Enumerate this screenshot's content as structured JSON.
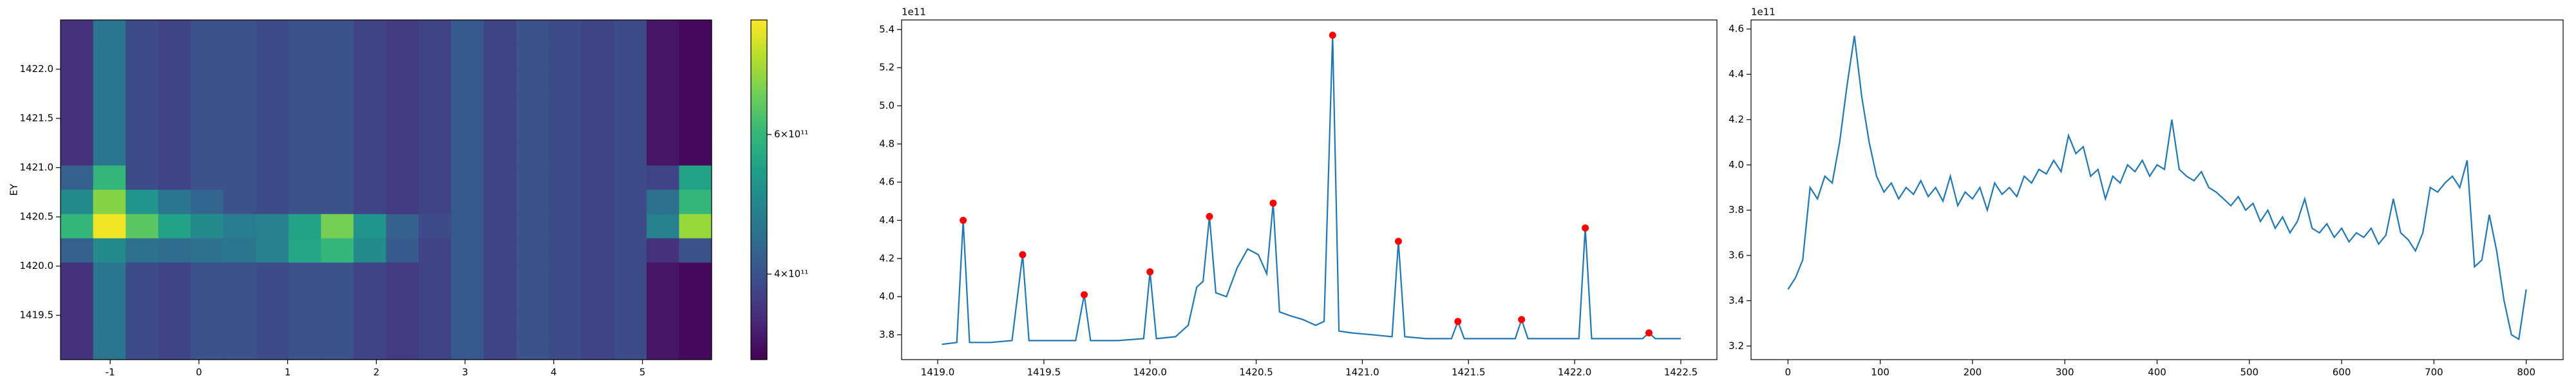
{
  "chart_data": [
    {
      "type": "heatmap",
      "ylabel": "EY",
      "colormap": "viridis",
      "color_scale": "log",
      "xlim": [
        -1.56,
        5.78
      ],
      "ylim": [
        1419.05,
        1422.5
      ],
      "xticks": [
        -1,
        0,
        1,
        2,
        3,
        4,
        5
      ],
      "yticks": [
        1419.5,
        {
          "value": 1420,
          "label": "1420.0"
        },
        1420.5,
        {
          "value": 1421,
          "label": "1421.0"
        },
        1421.5,
        {
          "value": 1422,
          "label": "1422.0"
        }
      ],
      "clim": [
        312000000000.0,
        837000000000.0
      ],
      "cticks": [
        {
          "value": 400000000000.0,
          "label": "4×10¹¹"
        },
        {
          "value": 600000000000.0,
          "label": "6×10¹¹"
        }
      ],
      "z": [
        [
          360000000000.0,
          460000000000.0,
          390000000000.0,
          380000000000.0,
          400000000000.0,
          400000000000.0,
          390000000000.0,
          400000000000.0,
          400000000000.0,
          380000000000.0,
          370000000000.0,
          380000000000.0,
          410000000000.0,
          380000000000.0,
          400000000000.0,
          390000000000.0,
          380000000000.0,
          390000000000.0,
          330000000000.0,
          320000000000.0
        ],
        [
          360000000000.0,
          460000000000.0,
          390000000000.0,
          380000000000.0,
          400000000000.0,
          400000000000.0,
          390000000000.0,
          400000000000.0,
          400000000000.0,
          380000000000.0,
          370000000000.0,
          380000000000.0,
          410000000000.0,
          380000000000.0,
          400000000000.0,
          390000000000.0,
          380000000000.0,
          390000000000.0,
          330000000000.0,
          320000000000.0
        ],
        [
          360000000000.0,
          460000000000.0,
          390000000000.0,
          380000000000.0,
          400000000000.0,
          400000000000.0,
          390000000000.0,
          400000000000.0,
          400000000000.0,
          380000000000.0,
          370000000000.0,
          380000000000.0,
          410000000000.0,
          380000000000.0,
          400000000000.0,
          390000000000.0,
          380000000000.0,
          390000000000.0,
          330000000000.0,
          320000000000.0
        ],
        [
          360000000000.0,
          460000000000.0,
          390000000000.0,
          380000000000.0,
          400000000000.0,
          400000000000.0,
          390000000000.0,
          400000000000.0,
          400000000000.0,
          380000000000.0,
          370000000000.0,
          380000000000.0,
          410000000000.0,
          380000000000.0,
          400000000000.0,
          390000000000.0,
          380000000000.0,
          390000000000.0,
          330000000000.0,
          320000000000.0
        ],
        [
          360000000000.0,
          460000000000.0,
          390000000000.0,
          380000000000.0,
          400000000000.0,
          400000000000.0,
          390000000000.0,
          400000000000.0,
          400000000000.0,
          380000000000.0,
          370000000000.0,
          380000000000.0,
          410000000000.0,
          380000000000.0,
          400000000000.0,
          390000000000.0,
          380000000000.0,
          390000000000.0,
          330000000000.0,
          320000000000.0
        ],
        [
          360000000000.0,
          460000000000.0,
          390000000000.0,
          380000000000.0,
          400000000000.0,
          400000000000.0,
          390000000000.0,
          400000000000.0,
          400000000000.0,
          380000000000.0,
          370000000000.0,
          380000000000.0,
          410000000000.0,
          380000000000.0,
          400000000000.0,
          390000000000.0,
          380000000000.0,
          390000000000.0,
          330000000000.0,
          320000000000.0
        ],
        [
          420000000000.0,
          600000000000.0,
          390000000000.0,
          380000000000.0,
          400000000000.0,
          400000000000.0,
          390000000000.0,
          400000000000.0,
          400000000000.0,
          380000000000.0,
          370000000000.0,
          380000000000.0,
          410000000000.0,
          380000000000.0,
          400000000000.0,
          390000000000.0,
          380000000000.0,
          390000000000.0,
          380000000000.0,
          550000000000.0
        ],
        [
          500000000000.0,
          700000000000.0,
          520000000000.0,
          460000000000.0,
          430000000000.0,
          400000000000.0,
          390000000000.0,
          400000000000.0,
          400000000000.0,
          380000000000.0,
          370000000000.0,
          380000000000.0,
          410000000000.0,
          380000000000.0,
          400000000000.0,
          390000000000.0,
          380000000000.0,
          390000000000.0,
          450000000000.0,
          600000000000.0
        ],
        [
          600000000000.0,
          820000000000.0,
          650000000000.0,
          550000000000.0,
          500000000000.0,
          470000000000.0,
          480000000000.0,
          550000000000.0,
          680000000000.0,
          520000000000.0,
          420000000000.0,
          390000000000.0,
          410000000000.0,
          380000000000.0,
          400000000000.0,
          390000000000.0,
          380000000000.0,
          390000000000.0,
          480000000000.0,
          720000000000.0
        ],
        [
          420000000000.0,
          500000000000.0,
          450000000000.0,
          440000000000.0,
          450000000000.0,
          460000000000.0,
          480000000000.0,
          560000000000.0,
          600000000000.0,
          500000000000.0,
          410000000000.0,
          380000000000.0,
          410000000000.0,
          380000000000.0,
          400000000000.0,
          390000000000.0,
          380000000000.0,
          390000000000.0,
          360000000000.0,
          400000000000.0
        ],
        [
          360000000000.0,
          460000000000.0,
          390000000000.0,
          380000000000.0,
          400000000000.0,
          400000000000.0,
          390000000000.0,
          400000000000.0,
          400000000000.0,
          380000000000.0,
          370000000000.0,
          380000000000.0,
          410000000000.0,
          380000000000.0,
          400000000000.0,
          390000000000.0,
          380000000000.0,
          390000000000.0,
          330000000000.0,
          320000000000.0
        ],
        [
          360000000000.0,
          460000000000.0,
          390000000000.0,
          380000000000.0,
          400000000000.0,
          400000000000.0,
          390000000000.0,
          400000000000.0,
          400000000000.0,
          380000000000.0,
          370000000000.0,
          380000000000.0,
          410000000000.0,
          380000000000.0,
          400000000000.0,
          390000000000.0,
          380000000000.0,
          390000000000.0,
          330000000000.0,
          320000000000.0
        ],
        [
          360000000000.0,
          460000000000.0,
          390000000000.0,
          380000000000.0,
          400000000000.0,
          400000000000.0,
          390000000000.0,
          400000000000.0,
          400000000000.0,
          380000000000.0,
          370000000000.0,
          380000000000.0,
          410000000000.0,
          380000000000.0,
          400000000000.0,
          390000000000.0,
          380000000000.0,
          390000000000.0,
          330000000000.0,
          320000000000.0
        ],
        [
          360000000000.0,
          460000000000.0,
          390000000000.0,
          380000000000.0,
          400000000000.0,
          400000000000.0,
          390000000000.0,
          400000000000.0,
          400000000000.0,
          380000000000.0,
          370000000000.0,
          380000000000.0,
          410000000000.0,
          380000000000.0,
          400000000000.0,
          390000000000.0,
          380000000000.0,
          390000000000.0,
          330000000000.0,
          320000000000.0
        ]
      ]
    },
    {
      "type": "line",
      "y_offset_label": "1e11",
      "xlim": [
        1418.83,
        1422.67
      ],
      "ylim": [
        3.67,
        5.45
      ],
      "xticks": [
        {
          "value": 1419,
          "label": "1419.0"
        },
        1419.5,
        {
          "value": 1420,
          "label": "1420.0"
        },
        1420.5,
        {
          "value": 1421,
          "label": "1421.0"
        },
        1421.5,
        {
          "value": 1422,
          "label": "1422.0"
        },
        1422.5
      ],
      "yticks": [
        3.8,
        {
          "value": 4,
          "label": "4.0"
        },
        4.2,
        4.4,
        4.6,
        4.8,
        {
          "value": 5,
          "label": "5.0"
        },
        5.2,
        5.4
      ],
      "series": [
        {
          "color": "#1f77b4",
          "style": "line",
          "x": [
            1419.02,
            1419.09,
            1419.12,
            1419.15,
            1419.25,
            1419.35,
            1419.4,
            1419.43,
            1419.55,
            1419.65,
            1419.69,
            1419.72,
            1419.85,
            1419.97,
            1420.0,
            1420.03,
            1420.12,
            1420.18,
            1420.22,
            1420.25,
            1420.28,
            1420.31,
            1420.36,
            1420.41,
            1420.46,
            1420.51,
            1420.55,
            1420.58,
            1420.61,
            1420.66,
            1420.72,
            1420.78,
            1420.82,
            1420.86,
            1420.89,
            1420.95,
            1421.05,
            1421.14,
            1421.17,
            1421.2,
            1421.3,
            1421.42,
            1421.45,
            1421.48,
            1421.6,
            1421.72,
            1421.75,
            1421.78,
            1421.9,
            1422.02,
            1422.05,
            1422.08,
            1422.2,
            1422.32,
            1422.35,
            1422.38,
            1422.5
          ],
          "values": [
            3.75,
            3.76,
            4.4,
            3.76,
            3.76,
            3.77,
            4.22,
            3.77,
            3.77,
            3.77,
            4.01,
            3.77,
            3.77,
            3.78,
            4.13,
            3.78,
            3.79,
            3.85,
            4.05,
            4.08,
            4.42,
            4.02,
            4.0,
            4.15,
            4.25,
            4.22,
            4.12,
            4.49,
            3.92,
            3.9,
            3.88,
            3.85,
            3.87,
            5.37,
            3.82,
            3.81,
            3.8,
            3.79,
            4.29,
            3.79,
            3.78,
            3.78,
            3.87,
            3.78,
            3.78,
            3.78,
            3.88,
            3.78,
            3.78,
            3.78,
            4.36,
            3.78,
            3.78,
            3.78,
            3.81,
            3.78,
            3.78
          ]
        },
        {
          "color": "#ff0000",
          "style": "markers",
          "x": [
            1419.12,
            1419.4,
            1419.69,
            1420.0,
            1420.28,
            1420.58,
            1420.86,
            1421.17,
            1421.45,
            1421.75,
            1422.05,
            1422.35
          ],
          "values": [
            4.4,
            4.22,
            4.01,
            4.13,
            4.42,
            4.49,
            5.37,
            4.29,
            3.87,
            3.88,
            4.36,
            3.81
          ]
        }
      ]
    },
    {
      "type": "line",
      "y_offset_label": "1e11",
      "xlim": [
        -40,
        840
      ],
      "ylim": [
        3.14,
        4.64
      ],
      "xticks": [
        0,
        100,
        200,
        300,
        400,
        500,
        600,
        700,
        800
      ],
      "yticks": [
        3.2,
        3.4,
        3.6,
        3.8,
        {
          "value": 4,
          "label": "4.0"
        },
        4.2,
        4.4,
        4.6
      ],
      "series": [
        {
          "color": "#1f77b4",
          "style": "line",
          "x": [
            0,
            8,
            16,
            24,
            32,
            40,
            48,
            56,
            64,
            72,
            80,
            88,
            96,
            104,
            112,
            120,
            128,
            136,
            144,
            152,
            160,
            168,
            176,
            184,
            192,
            200,
            208,
            216,
            224,
            232,
            240,
            248,
            256,
            264,
            272,
            280,
            288,
            296,
            304,
            312,
            320,
            328,
            336,
            344,
            352,
            360,
            368,
            376,
            384,
            392,
            400,
            408,
            416,
            424,
            432,
            440,
            448,
            456,
            464,
            472,
            480,
            488,
            496,
            504,
            512,
            520,
            528,
            536,
            544,
            552,
            560,
            568,
            576,
            584,
            592,
            600,
            608,
            616,
            624,
            632,
            640,
            648,
            656,
            664,
            672,
            680,
            688,
            696,
            704,
            712,
            720,
            728,
            736,
            744,
            752,
            760,
            768,
            776,
            784,
            792,
            800
          ],
          "values": [
            3.45,
            3.5,
            3.58,
            3.9,
            3.85,
            3.95,
            3.92,
            4.1,
            4.35,
            4.57,
            4.3,
            4.1,
            3.95,
            3.88,
            3.92,
            3.85,
            3.9,
            3.87,
            3.93,
            3.86,
            3.9,
            3.84,
            3.95,
            3.82,
            3.88,
            3.85,
            3.9,
            3.8,
            3.92,
            3.87,
            3.9,
            3.86,
            3.95,
            3.92,
            3.98,
            3.96,
            4.02,
            3.97,
            4.13,
            4.05,
            4.08,
            3.95,
            3.98,
            3.85,
            3.95,
            3.92,
            4.0,
            3.97,
            4.02,
            3.95,
            4.0,
            3.98,
            4.2,
            3.98,
            3.95,
            3.93,
            3.97,
            3.9,
            3.88,
            3.85,
            3.82,
            3.86,
            3.8,
            3.83,
            3.75,
            3.8,
            3.72,
            3.77,
            3.7,
            3.75,
            3.85,
            3.72,
            3.7,
            3.74,
            3.68,
            3.72,
            3.66,
            3.7,
            3.68,
            3.72,
            3.65,
            3.69,
            3.85,
            3.7,
            3.67,
            3.62,
            3.7,
            3.9,
            3.88,
            3.92,
            3.95,
            3.9,
            4.02,
            3.55,
            3.58,
            3.78,
            3.62,
            3.4,
            3.25,
            3.23,
            3.45
          ]
        }
      ]
    }
  ]
}
